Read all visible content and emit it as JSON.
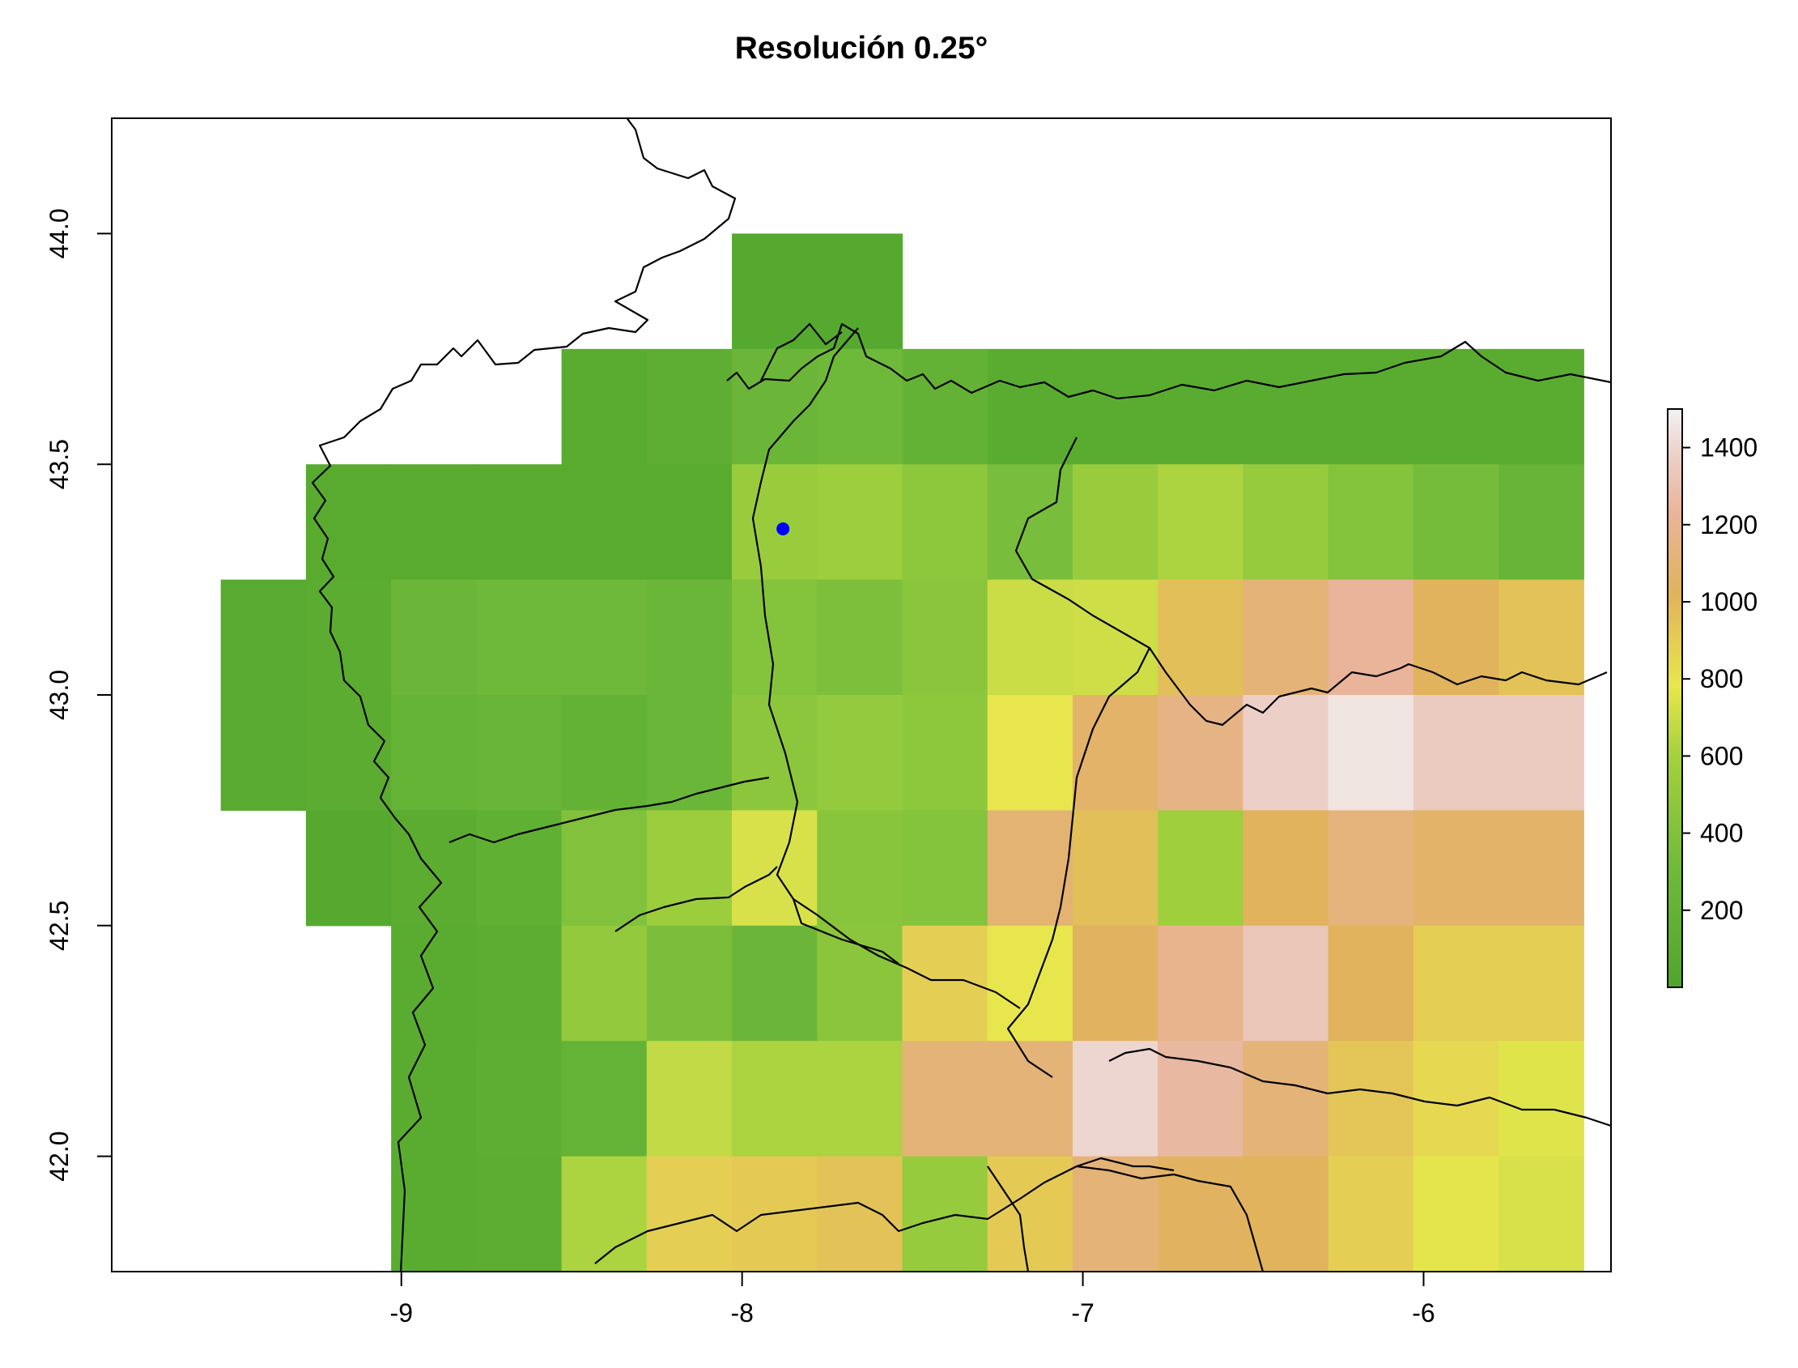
{
  "title": "Resolución 0.25°",
  "chart_data": {
    "type": "heatmap",
    "title": "Resolución 0.25°",
    "xlabel": "",
    "ylabel": "",
    "xlim": [
      -9.85,
      -5.45
    ],
    "ylim": [
      41.75,
      44.25
    ],
    "x_ticks": [
      -9,
      -8,
      -7,
      -6
    ],
    "x_tick_labels": [
      "-9",
      "-8",
      "-7",
      "-6"
    ],
    "y_ticks": [
      42.0,
      42.5,
      43.0,
      43.5,
      44.0
    ],
    "y_tick_labels": [
      "42.0",
      "42.5",
      "43.0",
      "43.5",
      "44.0"
    ],
    "cell_size": 0.25,
    "grid_x_start": -9.53,
    "grid_y_top": 44.0,
    "grid": [
      [
        null,
        null,
        null,
        null,
        null,
        null,
        60,
        60,
        null,
        null,
        null,
        null,
        null,
        null,
        null,
        null
      ],
      [
        null,
        null,
        null,
        null,
        100,
        130,
        260,
        300,
        200,
        100,
        100,
        100,
        100,
        100,
        100,
        100
      ],
      [
        null,
        90,
        90,
        90,
        90,
        90,
        540,
        560,
        470,
        350,
        540,
        620,
        520,
        420,
        340,
        230
      ],
      [
        80,
        110,
        260,
        290,
        290,
        250,
        420,
        370,
        450,
        700,
        710,
        950,
        1100,
        1230,
        1000,
        930
      ],
      [
        80,
        110,
        220,
        240,
        200,
        250,
        460,
        510,
        470,
        780,
        1050,
        1150,
        1380,
        1450,
        1350,
        1350
      ],
      [
        null,
        60,
        110,
        160,
        400,
        550,
        740,
        440,
        420,
        1080,
        950,
        580,
        1000,
        1120,
        1050,
        1050
      ],
      [
        null,
        null,
        100,
        120,
        500,
        360,
        260,
        450,
        880,
        780,
        1020,
        1180,
        1330,
        1000,
        880,
        880
      ],
      [
        null,
        null,
        100,
        140,
        210,
        680,
        620,
        620,
        1100,
        1100,
        1400,
        1250,
        1100,
        920,
        840,
        760
      ],
      [
        null,
        null,
        100,
        120,
        620,
        880,
        900,
        930,
        520,
        900,
        1100,
        1020,
        1000,
        880,
        770,
        740
      ]
    ],
    "point": {
      "x": -7.88,
      "y": 43.36,
      "color": "#0000ff"
    },
    "legend": {
      "type": "colorbar",
      "placement": "right",
      "range": [
        0,
        1500
      ],
      "ticks": [
        200,
        400,
        600,
        800,
        1000,
        1200,
        1400
      ],
      "tick_labels": [
        "200",
        "400",
        "600",
        "800",
        "1000",
        "1200",
        "1400"
      ]
    },
    "colors": {
      "low": "#4fa52c",
      "mid_green": "#a4d13e",
      "yellow": "#e8e64d",
      "orange": "#e0b35c",
      "peach": "#e9b49a",
      "high": "#f2f2f2"
    }
  }
}
